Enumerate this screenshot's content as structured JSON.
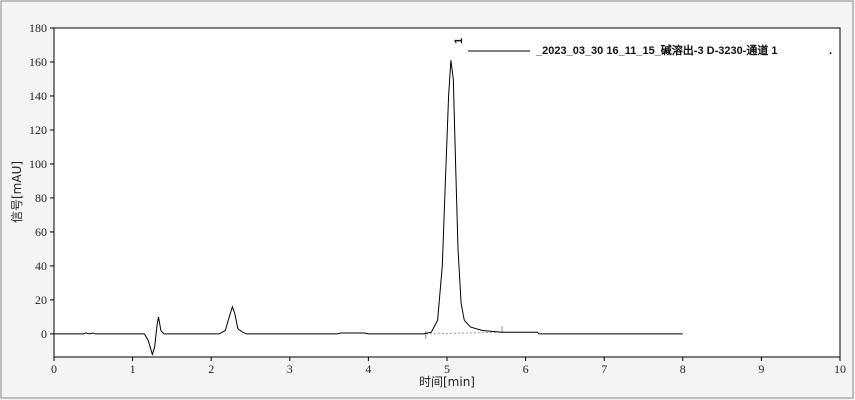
{
  "chart_data": {
    "type": "line",
    "xlabel": "时间[min]",
    "ylabel": "信号[mAU]",
    "xlim": [
      0,
      10
    ],
    "ylim": [
      -13.6,
      180
    ],
    "xticks": [
      0,
      1,
      2,
      3,
      4,
      5,
      6,
      7,
      8,
      9,
      10
    ],
    "yticks": [
      0,
      20,
      40,
      60,
      80,
      100,
      120,
      140,
      160,
      180
    ],
    "grid": false,
    "legend": {
      "placement": "top-right",
      "label": "_2023_03_30  16_11_15_碱溶出-3 D-3230-通道 1",
      "trailing": "."
    },
    "peak_labels": [
      {
        "label": "1",
        "x": 5.05
      }
    ],
    "integration_baseline": {
      "start": [
        4.73,
        0
      ],
      "end": [
        5.7,
        1
      ]
    },
    "colors": {
      "trace": "#000000",
      "baseline": "#999999",
      "background": "#f4f4f4",
      "plot": "#ffffff"
    },
    "series": [
      {
        "x": [
          0,
          0.38,
          0.4,
          0.45,
          0.5,
          0.52,
          1.15,
          1.2,
          1.25,
          1.28,
          1.31,
          1.33,
          1.36,
          1.4,
          1.5,
          2.1,
          2.18,
          2.23,
          2.27,
          2.3,
          2.34,
          2.4,
          2.45,
          3.6,
          3.65,
          3.95,
          4.0,
          4.7,
          4.8,
          4.88,
          4.94,
          4.98,
          5.02,
          5.05,
          5.08,
          5.11,
          5.14,
          5.18,
          5.22,
          5.3,
          5.45,
          5.7,
          6.15,
          6.17,
          8.0
        ],
        "y": [
          0,
          0,
          0.6,
          0,
          0.5,
          0,
          0,
          -4,
          -12,
          -8,
          5,
          10,
          2,
          0,
          0,
          0,
          2,
          10,
          16,
          12,
          3,
          1,
          0,
          0,
          0.5,
          0.5,
          0,
          0,
          1,
          8,
          40,
          90,
          140,
          161,
          150,
          100,
          50,
          18,
          8,
          4,
          2,
          1,
          1,
          0,
          0
        ]
      }
    ]
  }
}
